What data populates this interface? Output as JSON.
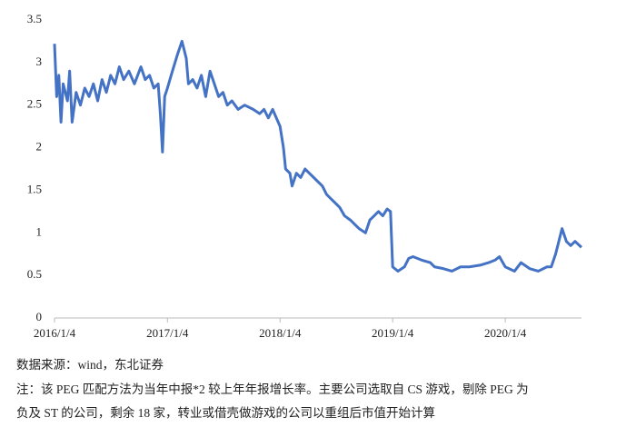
{
  "chart_data": {
    "type": "line",
    "x": [
      "2016/1/4",
      "2016/1/11",
      "2016/1/18",
      "2016/1/25",
      "2016/2/1",
      "2016/2/15",
      "2016/2/22",
      "2016/3/1",
      "2016/3/14",
      "2016/3/28",
      "2016/4/11",
      "2016/4/25",
      "2016/5/9",
      "2016/5/23",
      "2016/6/6",
      "2016/6/20",
      "2016/7/4",
      "2016/7/18",
      "2016/8/1",
      "2016/8/15",
      "2016/9/1",
      "2016/9/19",
      "2016/10/10",
      "2016/10/24",
      "2016/11/7",
      "2016/11/21",
      "2016/12/5",
      "2016/12/12",
      "2016/12/19",
      "2016/12/26",
      "2017/1/4",
      "2017/1/16",
      "2017/2/6",
      "2017/2/20",
      "2017/3/6",
      "2017/3/13",
      "2017/3/27",
      "2017/4/10",
      "2017/4/24",
      "2017/5/8",
      "2017/5/22",
      "2017/6/5",
      "2017/6/19",
      "2017/7/3",
      "2017/7/17",
      "2017/8/1",
      "2017/8/21",
      "2017/9/11",
      "2017/10/9",
      "2017/10/30",
      "2017/11/13",
      "2017/11/27",
      "2017/12/11",
      "2018/1/4",
      "2018/1/15",
      "2018/1/22",
      "2018/2/5",
      "2018/2/12",
      "2018/2/26",
      "2018/3/12",
      "2018/3/26",
      "2018/4/9",
      "2018/4/23",
      "2018/5/7",
      "2018/5/21",
      "2018/6/4",
      "2018/6/18",
      "2018/7/2",
      "2018/7/16",
      "2018/8/1",
      "2018/8/20",
      "2018/9/3",
      "2018/9/17",
      "2018/10/8",
      "2018/10/22",
      "2018/11/5",
      "2018/11/19",
      "2018/12/3",
      "2018/12/17",
      "2018/12/28",
      "2019/1/4",
      "2019/1/21",
      "2019/2/11",
      "2019/2/25",
      "2019/3/11",
      "2019/3/25",
      "2019/4/8",
      "2019/5/6",
      "2019/5/20",
      "2019/6/17",
      "2019/7/15",
      "2019/8/12",
      "2019/9/9",
      "2019/10/14",
      "2019/11/11",
      "2019/12/2",
      "2019/12/16",
      "2020/1/4",
      "2020/2/3",
      "2020/2/24",
      "2020/3/23",
      "2020/4/20",
      "2020/5/18",
      "2020/6/1",
      "2020/6/15",
      "2020/6/29",
      "2020/7/6",
      "2020/7/20",
      "2020/8/3",
      "2020/8/17",
      "2020/9/1",
      "2020/9/7"
    ],
    "series": [
      {
        "color": "#4472c4",
        "values": [
          3.22,
          2.6,
          2.85,
          2.3,
          2.75,
          2.55,
          2.9,
          2.3,
          2.65,
          2.5,
          2.7,
          2.6,
          2.75,
          2.55,
          2.8,
          2.65,
          2.85,
          2.75,
          2.95,
          2.8,
          2.9,
          2.75,
          2.95,
          2.8,
          2.85,
          2.7,
          2.75,
          2.4,
          1.95,
          2.6,
          2.7,
          2.85,
          3.1,
          3.25,
          3.05,
          2.75,
          2.8,
          2.7,
          2.85,
          2.6,
          2.9,
          2.75,
          2.6,
          2.65,
          2.5,
          2.55,
          2.45,
          2.5,
          2.45,
          2.4,
          2.45,
          2.35,
          2.45,
          2.25,
          2.0,
          1.75,
          1.7,
          1.55,
          1.7,
          1.65,
          1.75,
          1.7,
          1.65,
          1.6,
          1.55,
          1.45,
          1.4,
          1.35,
          1.3,
          1.2,
          1.15,
          1.1,
          1.05,
          1.0,
          1.15,
          1.2,
          1.25,
          1.2,
          1.28,
          1.25,
          0.6,
          0.55,
          0.6,
          0.7,
          0.72,
          0.7,
          0.68,
          0.65,
          0.6,
          0.58,
          0.55,
          0.6,
          0.6,
          0.62,
          0.65,
          0.68,
          0.72,
          0.6,
          0.55,
          0.65,
          0.58,
          0.55,
          0.6,
          0.6,
          0.75,
          0.95,
          1.05,
          0.9,
          0.85,
          0.9,
          0.85,
          0.83
        ]
      }
    ],
    "xlim": [
      "2016/1/4",
      "2020/9/7"
    ],
    "xticks": [
      "2016/1/4",
      "2017/1/4",
      "2018/1/4",
      "2019/1/4",
      "2020/1/4"
    ],
    "ylim": [
      0,
      3.5
    ],
    "yticks": [
      0,
      0.5,
      1,
      1.5,
      2,
      2.5,
      3,
      3.5
    ],
    "notes": [
      "数据来源：wind，东北证券",
      "注：该 PEG 匹配方法为当年中报*2 较上年年报增长率。主要公司选取自 CS 游戏，剔除 PEG 为",
      "负及 ST 的公司，剩余 18 家，转业或借壳做游戏的公司以重组后市值开始计算"
    ]
  }
}
